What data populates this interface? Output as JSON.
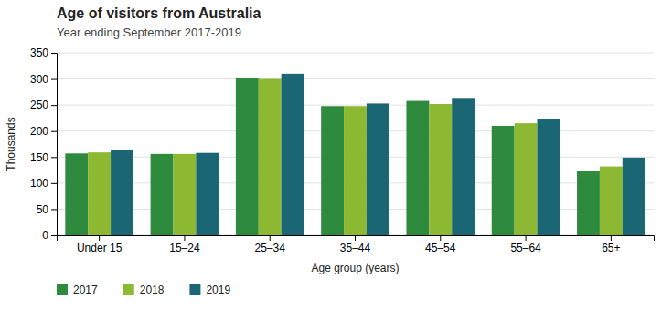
{
  "chart_data": {
    "type": "bar",
    "title": "Age of visitors from Australia",
    "subtitle": "Year ending  September 2017-2019",
    "xlabel": "Age group (years)",
    "ylabel": "Thousands",
    "categories": [
      "Under 15",
      "15–24",
      "25–34",
      "35–44",
      "45–54",
      "55–64",
      "65+"
    ],
    "series": [
      {
        "name": "2017",
        "color": "#2e8b3e",
        "values": [
          157,
          156,
          302,
          248,
          258,
          210,
          124
        ]
      },
      {
        "name": "2018",
        "color": "#8db832",
        "values": [
          159,
          156,
          300,
          248,
          252,
          215,
          132
        ]
      },
      {
        "name": "2019",
        "color": "#1a6674",
        "values": [
          163,
          158,
          310,
          253,
          262,
          224,
          149
        ]
      }
    ],
    "ylim": [
      0,
      350
    ],
    "yticks": [
      0,
      50,
      100,
      150,
      200,
      250,
      300,
      350
    ],
    "grid": true,
    "legend": "bottom"
  }
}
